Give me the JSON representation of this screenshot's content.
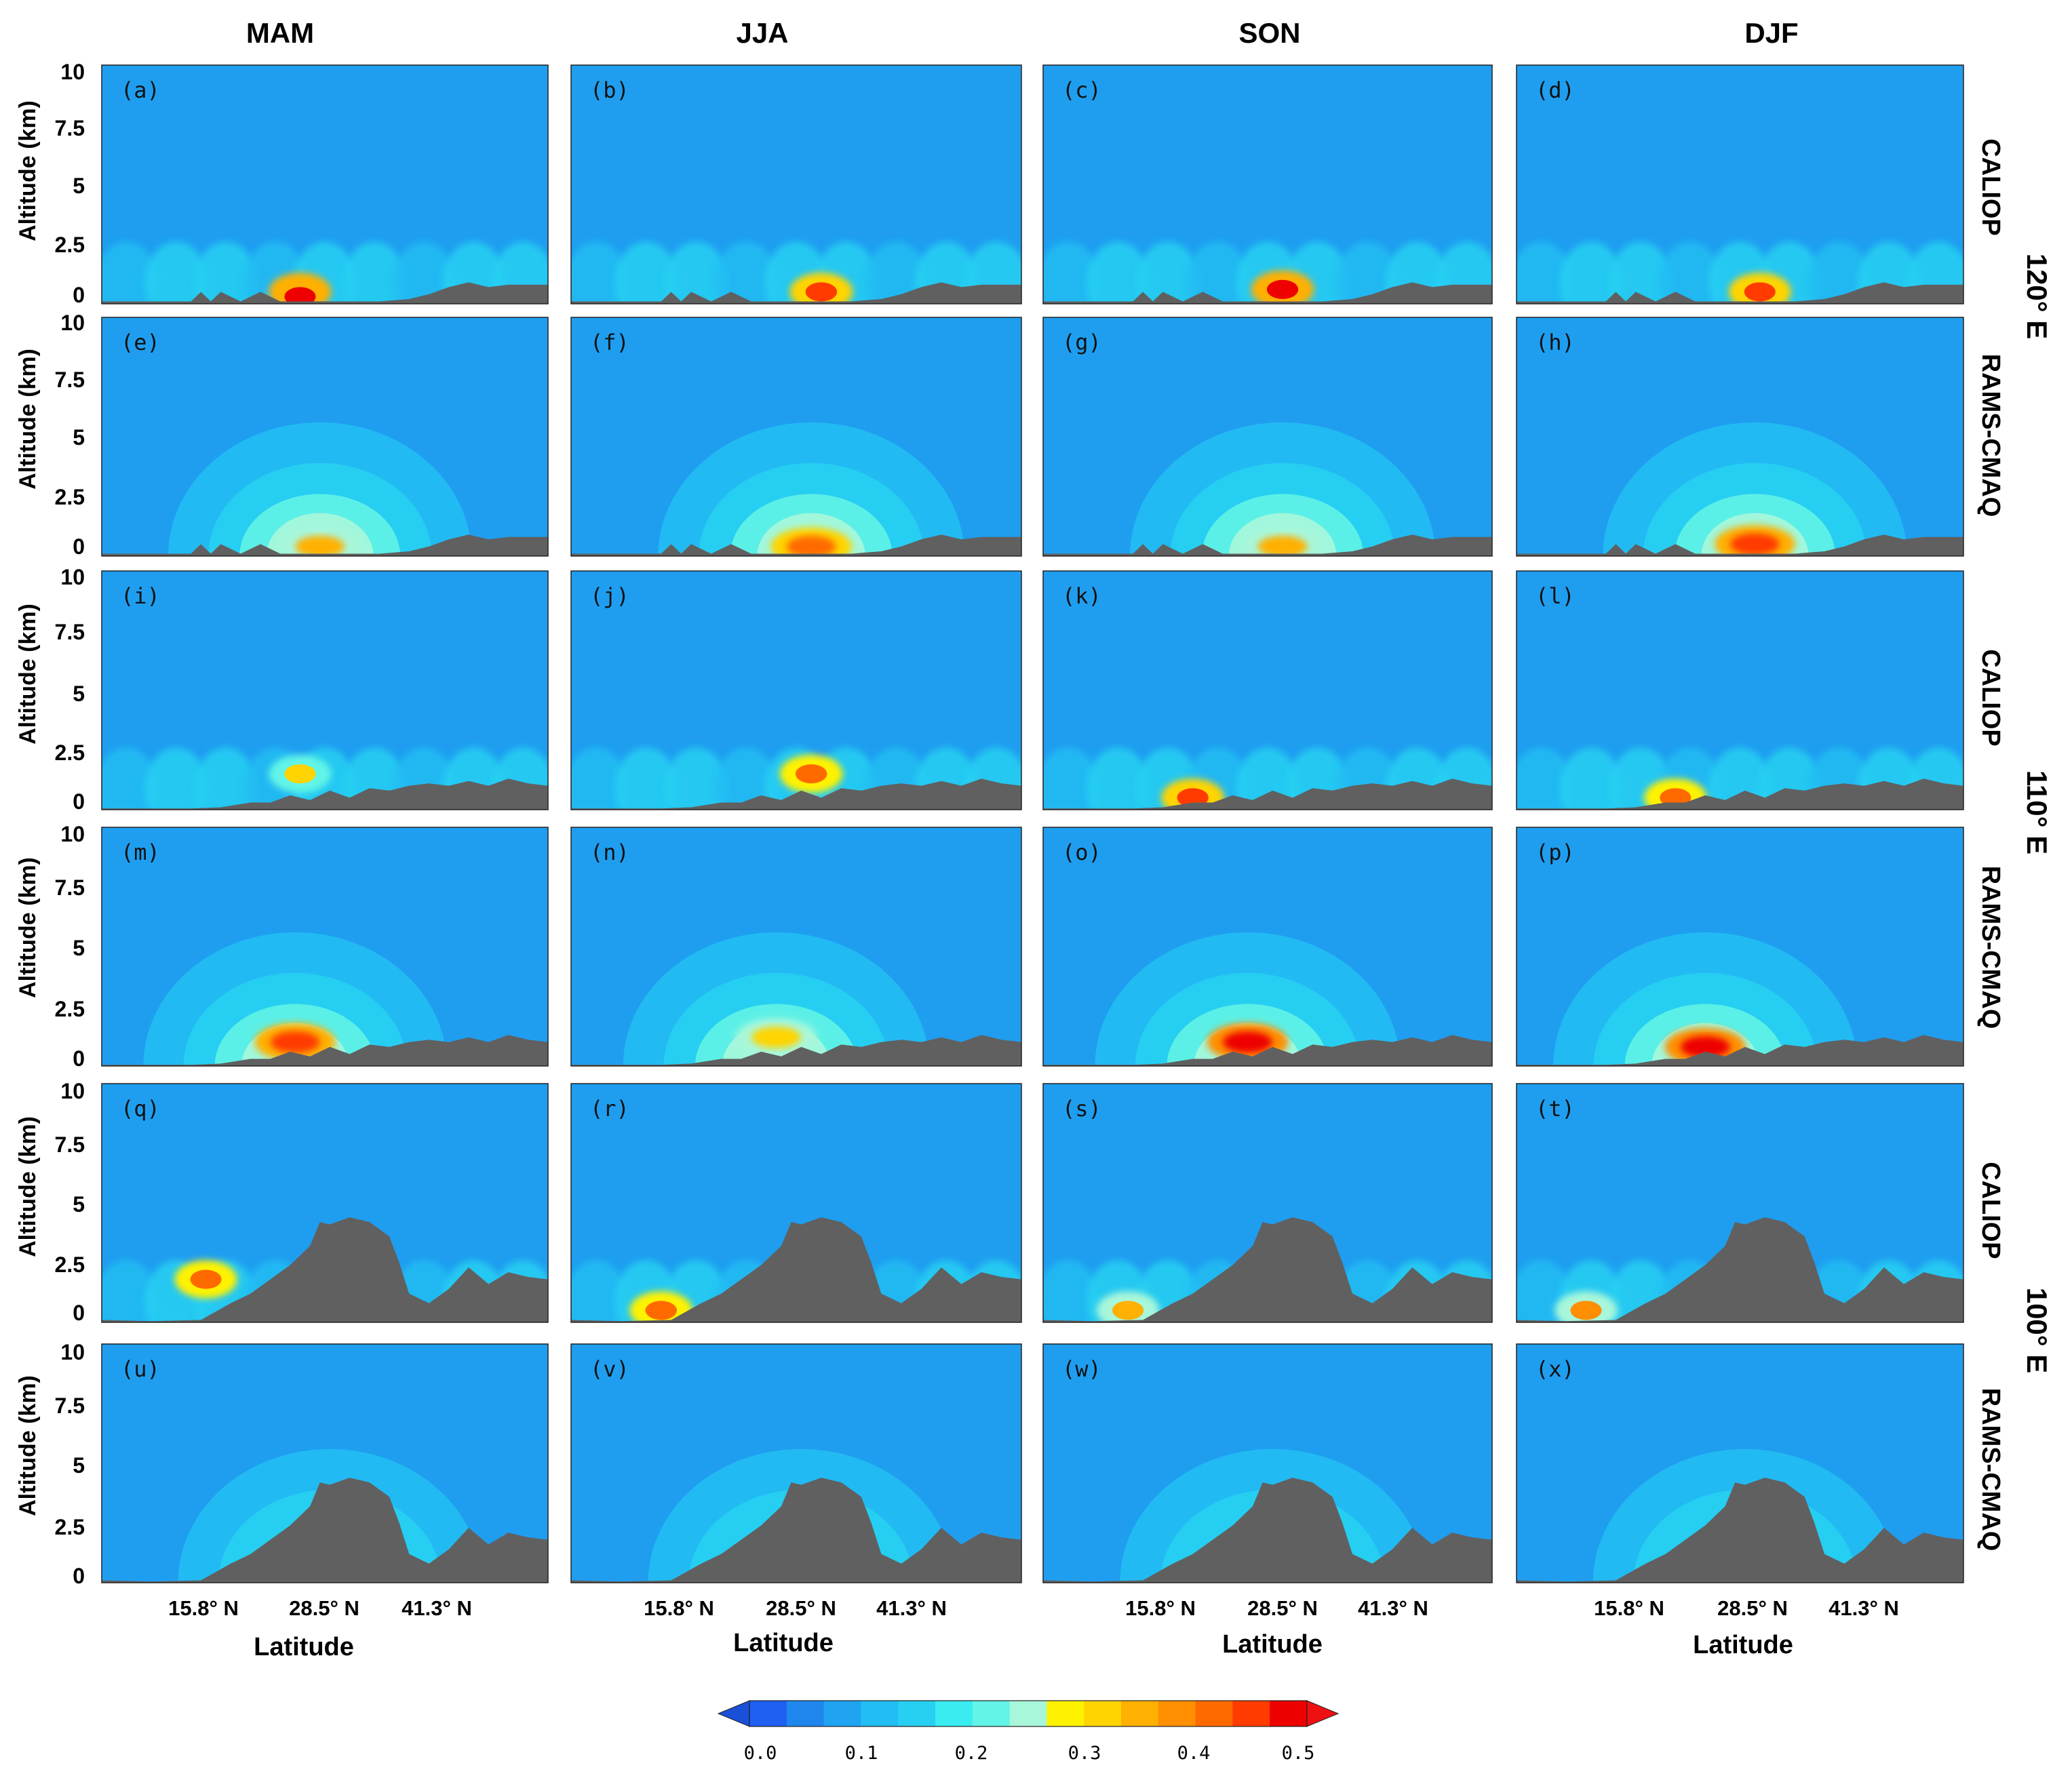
{
  "chart_data": {
    "type": "heatmap",
    "title": "",
    "description_type": "vertical cross-sections (latitude vs altitude) of aerosol extinction",
    "columns": [
      "MAM",
      "JJA",
      "SON",
      "DJF"
    ],
    "rows": [
      "CALIOP",
      "RAMS-CMAQ",
      "CALIOP",
      "RAMS-CMAQ",
      "CALIOP",
      "RAMS-CMAQ"
    ],
    "meridians": [
      "120° E",
      "110° E",
      "100° E"
    ],
    "panel_labels": [
      "(a)",
      "(b)",
      "(c)",
      "(d)",
      "(e)",
      "(f)",
      "(g)",
      "(h)",
      "(i)",
      "(j)",
      "(k)",
      "(l)",
      "(m)",
      "(n)",
      "(o)",
      "(p)",
      "(q)",
      "(r)",
      "(s)",
      "(t)",
      "(u)",
      "(v)",
      "(w)",
      "(x)"
    ],
    "ylabel": "Altitude (km)",
    "xlabel": "Latitude",
    "yticks": [
      "10",
      "7.5",
      "5",
      "2.5",
      "0"
    ],
    "ytick_values": [
      10,
      7.5,
      5,
      2.5,
      0
    ],
    "ylim": [
      0,
      10
    ],
    "xticks": [
      "15.8° N",
      "28.5° N",
      "41.3° N"
    ],
    "xtick_values": [
      15.8,
      28.5,
      41.3
    ],
    "xlim": [
      5,
      50
    ],
    "terrain_km": {
      "120E": {
        "lat": [
          5,
          14,
          15,
          16,
          17,
          19,
          21,
          23,
          25,
          27,
          30,
          33,
          36,
          38,
          40,
          42,
          44,
          46,
          50
        ],
        "h": [
          0.1,
          0.1,
          0.5,
          0.1,
          0.5,
          0.1,
          0.5,
          0.1,
          0.1,
          0.1,
          0.1,
          0.1,
          0.2,
          0.4,
          0.7,
          0.9,
          0.7,
          0.8,
          0.8
        ]
      },
      "110E": {
        "lat": [
          5,
          14,
          17,
          20,
          22,
          24,
          26,
          28,
          30,
          32,
          34,
          36,
          38,
          40,
          42,
          44,
          46,
          48,
          50
        ],
        "h": [
          0.05,
          0.05,
          0.1,
          0.3,
          0.3,
          0.6,
          0.4,
          0.8,
          0.5,
          0.9,
          0.8,
          1.0,
          1.1,
          1.0,
          1.2,
          1.0,
          1.3,
          1.1,
          1.0
        ]
      },
      "100E": {
        "lat": [
          5,
          10,
          15,
          18,
          20,
          22,
          24,
          26,
          27,
          28,
          30,
          32,
          34,
          35,
          36,
          38,
          40,
          42,
          44,
          46,
          48,
          50
        ],
        "h": [
          0.1,
          0.05,
          0.1,
          0.8,
          1.2,
          1.8,
          2.4,
          3.2,
          4.2,
          4.1,
          4.4,
          4.2,
          3.6,
          2.5,
          1.2,
          0.8,
          1.4,
          2.3,
          1.6,
          2.1,
          1.9,
          1.8
        ]
      }
    },
    "hotspots_extinction": [
      {
        "panel": "(a)",
        "lat": 25.0,
        "alt_km": 0.3,
        "value": 0.5
      },
      {
        "panel": "(b)",
        "lat": 30.0,
        "alt_km": 0.5,
        "value": 0.45
      },
      {
        "panel": "(c)",
        "lat": 29.0,
        "alt_km": 0.6,
        "value": 0.5
      },
      {
        "panel": "(d)",
        "lat": 29.5,
        "alt_km": 0.5,
        "value": 0.45
      },
      {
        "panel": "(e)",
        "lat": 27.0,
        "alt_km": 0.4,
        "value": 0.35
      },
      {
        "panel": "(f)",
        "lat": 29.0,
        "alt_km": 0.4,
        "value": 0.4
      },
      {
        "panel": "(g)",
        "lat": 29.0,
        "alt_km": 0.4,
        "value": 0.35
      },
      {
        "panel": "(h)",
        "lat": 29.0,
        "alt_km": 0.5,
        "value": 0.45
      },
      {
        "panel": "(i)",
        "lat": 25.0,
        "alt_km": 1.5,
        "value": 0.3
      },
      {
        "panel": "(j)",
        "lat": 29.0,
        "alt_km": 1.5,
        "value": 0.4
      },
      {
        "panel": "(k)",
        "lat": 20.0,
        "alt_km": 0.5,
        "value": 0.45
      },
      {
        "panel": "(l)",
        "lat": 21.0,
        "alt_km": 0.5,
        "value": 0.4
      },
      {
        "panel": "(m)",
        "lat": 24.5,
        "alt_km": 1.0,
        "value": 0.45
      },
      {
        "panel": "(n)",
        "lat": 25.5,
        "alt_km": 1.2,
        "value": 0.32
      },
      {
        "panel": "(o)",
        "lat": 25.5,
        "alt_km": 1.0,
        "value": 0.5
      },
      {
        "panel": "(p)",
        "lat": 24.0,
        "alt_km": 0.8,
        "value": 0.5
      },
      {
        "panel": "(q)",
        "lat": 15.5,
        "alt_km": 1.8,
        "value": 0.4
      },
      {
        "panel": "(r)",
        "lat": 14.0,
        "alt_km": 0.5,
        "value": 0.4
      },
      {
        "panel": "(s)",
        "lat": 13.5,
        "alt_km": 0.5,
        "value": 0.35
      },
      {
        "panel": "(t)",
        "lat": 12.0,
        "alt_km": 0.5,
        "value": 0.38
      }
    ],
    "colorbar": {
      "ticks": [
        "0.0",
        "0.1",
        "0.2",
        "0.3",
        "0.4",
        "0.5"
      ],
      "tick_values": [
        0.0,
        0.1,
        0.2,
        0.3,
        0.4,
        0.5
      ],
      "range": [
        0.0,
        0.5
      ],
      "extend": "both",
      "colors": [
        "#1f5ff2",
        "#1f86ee",
        "#20a4f2",
        "#22bdf3",
        "#27d0f2",
        "#38ecf0",
        "#62f4e6",
        "#a8f7da",
        "#fff200",
        "#ffd400",
        "#ffb000",
        "#ff8f00",
        "#ff6a00",
        "#ff3b00",
        "#ee0000"
      ],
      "background_color": "#1f9ef0",
      "terrain_color": "#606060",
      "under_color": "#1a4fd8",
      "over_color": "#ee1111"
    }
  }
}
